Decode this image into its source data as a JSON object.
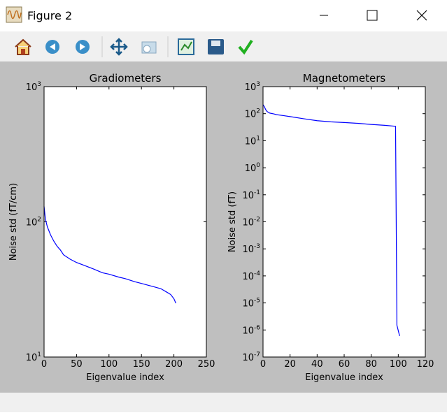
{
  "window": {
    "title": "Figure 2"
  },
  "chart_data": [
    {
      "type": "line",
      "title": "Gradiometers",
      "x_label": "Eigenvalue index",
      "y_label": "Noise std (fT/cm)",
      "log_y": true,
      "xlim": [
        0,
        250
      ],
      "ylim": [
        10,
        1000
      ],
      "xticks": [
        0,
        50,
        100,
        150,
        200,
        250
      ],
      "yticks": [
        {
          "value": 10,
          "label": "10",
          "exponent": "1"
        },
        {
          "value": 100,
          "label": "10",
          "exponent": "2"
        },
        {
          "value": 1000,
          "label": "10",
          "exponent": "3"
        }
      ],
      "x": [
        0,
        2,
        5,
        10,
        15,
        20,
        25,
        30,
        40,
        50,
        60,
        75,
        90,
        100,
        115,
        125,
        140,
        150,
        160,
        170,
        180,
        190,
        195,
        200,
        203
      ],
      "series": [
        {
          "color": "#0000ff",
          "values": [
            130,
            105,
            92,
            80,
            72,
            66,
            62,
            57,
            53,
            50,
            48,
            45,
            42,
            41,
            39,
            38,
            36,
            35,
            34,
            33,
            32,
            30,
            29,
            27,
            25
          ]
        }
      ]
    },
    {
      "type": "line",
      "title": "Magnetometers",
      "x_label": "Eigenvalue index",
      "y_label": "Noise std (fT)",
      "log_y": true,
      "xlim": [
        0,
        120
      ],
      "ylim": [
        1e-07,
        1000
      ],
      "xticks": [
        0,
        20,
        40,
        60,
        80,
        100,
        120
      ],
      "yticks": [
        {
          "value": 1e-07,
          "label": "10",
          "exponent": "-7"
        },
        {
          "value": 1e-06,
          "label": "10",
          "exponent": "-6"
        },
        {
          "value": 1e-05,
          "label": "10",
          "exponent": "-5"
        },
        {
          "value": 0.0001,
          "label": "10",
          "exponent": "-4"
        },
        {
          "value": 0.001,
          "label": "10",
          "exponent": "-3"
        },
        {
          "value": 0.01,
          "label": "10",
          "exponent": "-2"
        },
        {
          "value": 0.1,
          "label": "10",
          "exponent": "-1"
        },
        {
          "value": 1,
          "label": "10",
          "exponent": "0"
        },
        {
          "value": 10,
          "label": "10",
          "exponent": "1"
        },
        {
          "value": 100,
          "label": "10",
          "exponent": "2"
        },
        {
          "value": 1000,
          "label": "10",
          "exponent": "3"
        }
      ],
      "x": [
        0,
        1,
        2,
        3,
        5,
        8,
        10,
        15,
        20,
        30,
        40,
        50,
        60,
        70,
        80,
        90,
        98,
        99,
        101
      ],
      "series": [
        {
          "color": "#0000ff",
          "values": [
            215,
            180,
            140,
            120,
            105,
            98,
            92,
            85,
            78,
            65,
            55,
            50,
            47,
            44,
            40,
            37,
            34,
            1.5e-06,
            6e-07
          ]
        }
      ]
    }
  ]
}
